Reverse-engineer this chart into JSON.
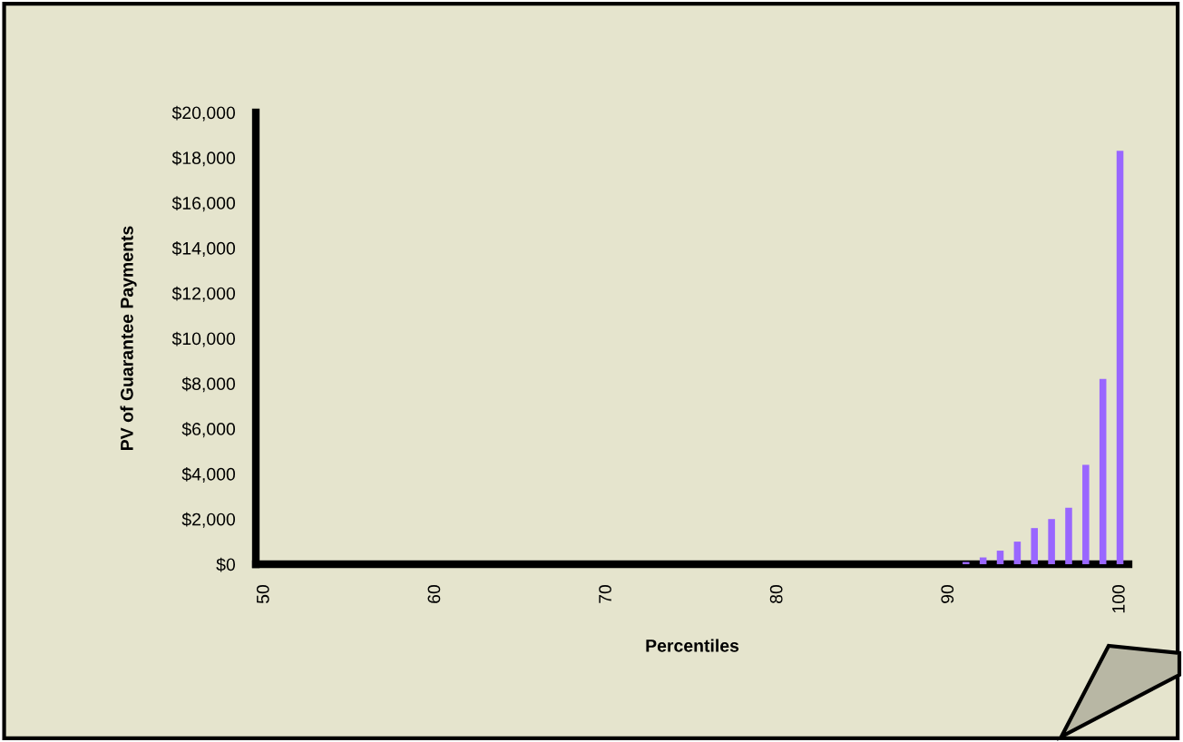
{
  "chart_data": {
    "type": "bar",
    "xlabel": "Percentiles",
    "ylabel": "PV of Guarantee Payments",
    "x": [
      91,
      92,
      93,
      94,
      95,
      96,
      97,
      98,
      99,
      100
    ],
    "values": [
      100,
      300,
      600,
      1000,
      1600,
      2000,
      2500,
      4400,
      8200,
      18300
    ],
    "color": "#9966ff",
    "xlim": [
      49.5,
      100.5
    ],
    "xticks": [
      50,
      60,
      70,
      80,
      90,
      100
    ],
    "ylim": [
      0,
      20000
    ],
    "yticks": [
      {
        "value": 0,
        "label": "$0"
      },
      {
        "value": 2000,
        "label": "$2,000"
      },
      {
        "value": 4000,
        "label": "$4,000"
      },
      {
        "value": 6000,
        "label": "$6,000"
      },
      {
        "value": 8000,
        "label": "$8,000"
      },
      {
        "value": 10000,
        "label": "$10,000"
      },
      {
        "value": 12000,
        "label": "$12,000"
      },
      {
        "value": 14000,
        "label": "$14,000"
      },
      {
        "value": 16000,
        "label": "$16,000"
      },
      {
        "value": 18000,
        "label": "$18,000"
      },
      {
        "value": 20000,
        "label": "$20,000"
      }
    ],
    "grid": false
  }
}
